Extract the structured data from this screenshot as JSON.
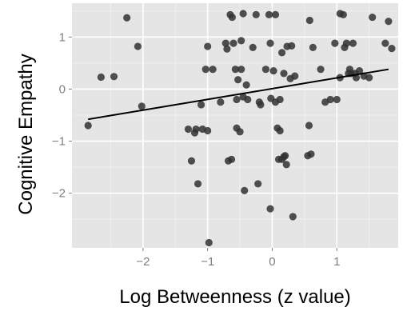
{
  "chart_data": {
    "type": "scatter",
    "title": "",
    "xlabel": "Log Betweenness (z value)",
    "ylabel": "Cognitive Empathy",
    "xlim": [
      -3.1,
      1.95
    ],
    "ylim": [
      -3.05,
      1.65
    ],
    "x_ticks": [
      -2,
      -1,
      0,
      1
    ],
    "x_tick_labels": [
      "−2",
      "−1",
      "0",
      "1"
    ],
    "y_ticks": [
      -2,
      -1,
      0,
      1
    ],
    "y_tick_labels": [
      "−2",
      "−1",
      "0",
      "1"
    ],
    "grid": true,
    "panel_background": "#e5e5e5",
    "point_color": "#333333",
    "line_color": "#000000",
    "points": [
      [
        -2.85,
        -0.7
      ],
      [
        -2.65,
        0.23
      ],
      [
        -2.45,
        0.24
      ],
      [
        -2.25,
        1.37
      ],
      [
        -2.08,
        0.82
      ],
      [
        -2.02,
        -0.33
      ],
      [
        -1.3,
        -0.77
      ],
      [
        -1.25,
        -1.38
      ],
      [
        -1.2,
        -0.84
      ],
      [
        -1.18,
        -0.77
      ],
      [
        -1.15,
        -1.82
      ],
      [
        -1.1,
        -0.3
      ],
      [
        -1.08,
        -0.77
      ],
      [
        -1.03,
        0.38
      ],
      [
        -1.0,
        0.82
      ],
      [
        -1.0,
        -0.8
      ],
      [
        -0.98,
        -2.95
      ],
      [
        -0.92,
        0.38
      ],
      [
        -0.8,
        -0.25
      ],
      [
        -0.72,
        0.88
      ],
      [
        -0.7,
        0.77
      ],
      [
        -0.68,
        -1.38
      ],
      [
        -0.65,
        1.43
      ],
      [
        -0.63,
        -1.35
      ],
      [
        -0.62,
        1.38
      ],
      [
        -0.6,
        0.88
      ],
      [
        -0.57,
        0.38
      ],
      [
        -0.55,
        -0.2
      ],
      [
        -0.55,
        -0.75
      ],
      [
        -0.53,
        0.18
      ],
      [
        -0.5,
        -0.82
      ],
      [
        -0.48,
        0.93
      ],
      [
        -0.48,
        0.38
      ],
      [
        -0.45,
        -0.15
      ],
      [
        -0.45,
        1.45
      ],
      [
        -0.43,
        -1.95
      ],
      [
        -0.4,
        0.08
      ],
      [
        -0.38,
        -0.2
      ],
      [
        -0.3,
        0.8
      ],
      [
        -0.25,
        1.43
      ],
      [
        -0.22,
        -1.82
      ],
      [
        -0.2,
        -0.25
      ],
      [
        -0.18,
        -0.3
      ],
      [
        -0.1,
        0.38
      ],
      [
        -0.05,
        1.43
      ],
      [
        -0.03,
        0.88
      ],
      [
        -0.03,
        -2.3
      ],
      [
        -0.02,
        -0.18
      ],
      [
        0.02,
        0.35
      ],
      [
        0.05,
        1.43
      ],
      [
        0.05,
        -0.25
      ],
      [
        0.08,
        -0.75
      ],
      [
        0.1,
        -1.35
      ],
      [
        0.12,
        -0.8
      ],
      [
        0.12,
        -0.2
      ],
      [
        0.15,
        0.7
      ],
      [
        0.15,
        -1.35
      ],
      [
        0.18,
        0.3
      ],
      [
        0.18,
        -1.3
      ],
      [
        0.2,
        -1.28
      ],
      [
        0.22,
        -1.45
      ],
      [
        0.23,
        0.82
      ],
      [
        0.28,
        0.2
      ],
      [
        0.3,
        0.83
      ],
      [
        0.32,
        -2.45
      ],
      [
        0.35,
        0.25
      ],
      [
        0.55,
        -1.28
      ],
      [
        0.57,
        -0.7
      ],
      [
        0.58,
        1.32
      ],
      [
        0.6,
        -1.25
      ],
      [
        0.63,
        0.8
      ],
      [
        0.75,
        0.38
      ],
      [
        0.82,
        -0.25
      ],
      [
        0.9,
        -0.2
      ],
      [
        0.97,
        0.88
      ],
      [
        1.0,
        -0.2
      ],
      [
        1.05,
        1.45
      ],
      [
        1.05,
        0.22
      ],
      [
        1.1,
        1.43
      ],
      [
        1.12,
        0.8
      ],
      [
        1.15,
        0.88
      ],
      [
        1.18,
        0.3
      ],
      [
        1.2,
        0.38
      ],
      [
        1.22,
        0.3
      ],
      [
        1.25,
        0.88
      ],
      [
        1.28,
        0.3
      ],
      [
        1.3,
        0.22
      ],
      [
        1.35,
        0.35
      ],
      [
        1.42,
        0.25
      ],
      [
        1.5,
        0.22
      ],
      [
        1.55,
        1.38
      ],
      [
        1.75,
        0.88
      ],
      [
        1.8,
        1.3
      ],
      [
        1.85,
        0.78
      ]
    ],
    "fit_line": {
      "x": [
        -2.85,
        1.8
      ],
      "y": [
        -0.58,
        0.38
      ]
    }
  }
}
